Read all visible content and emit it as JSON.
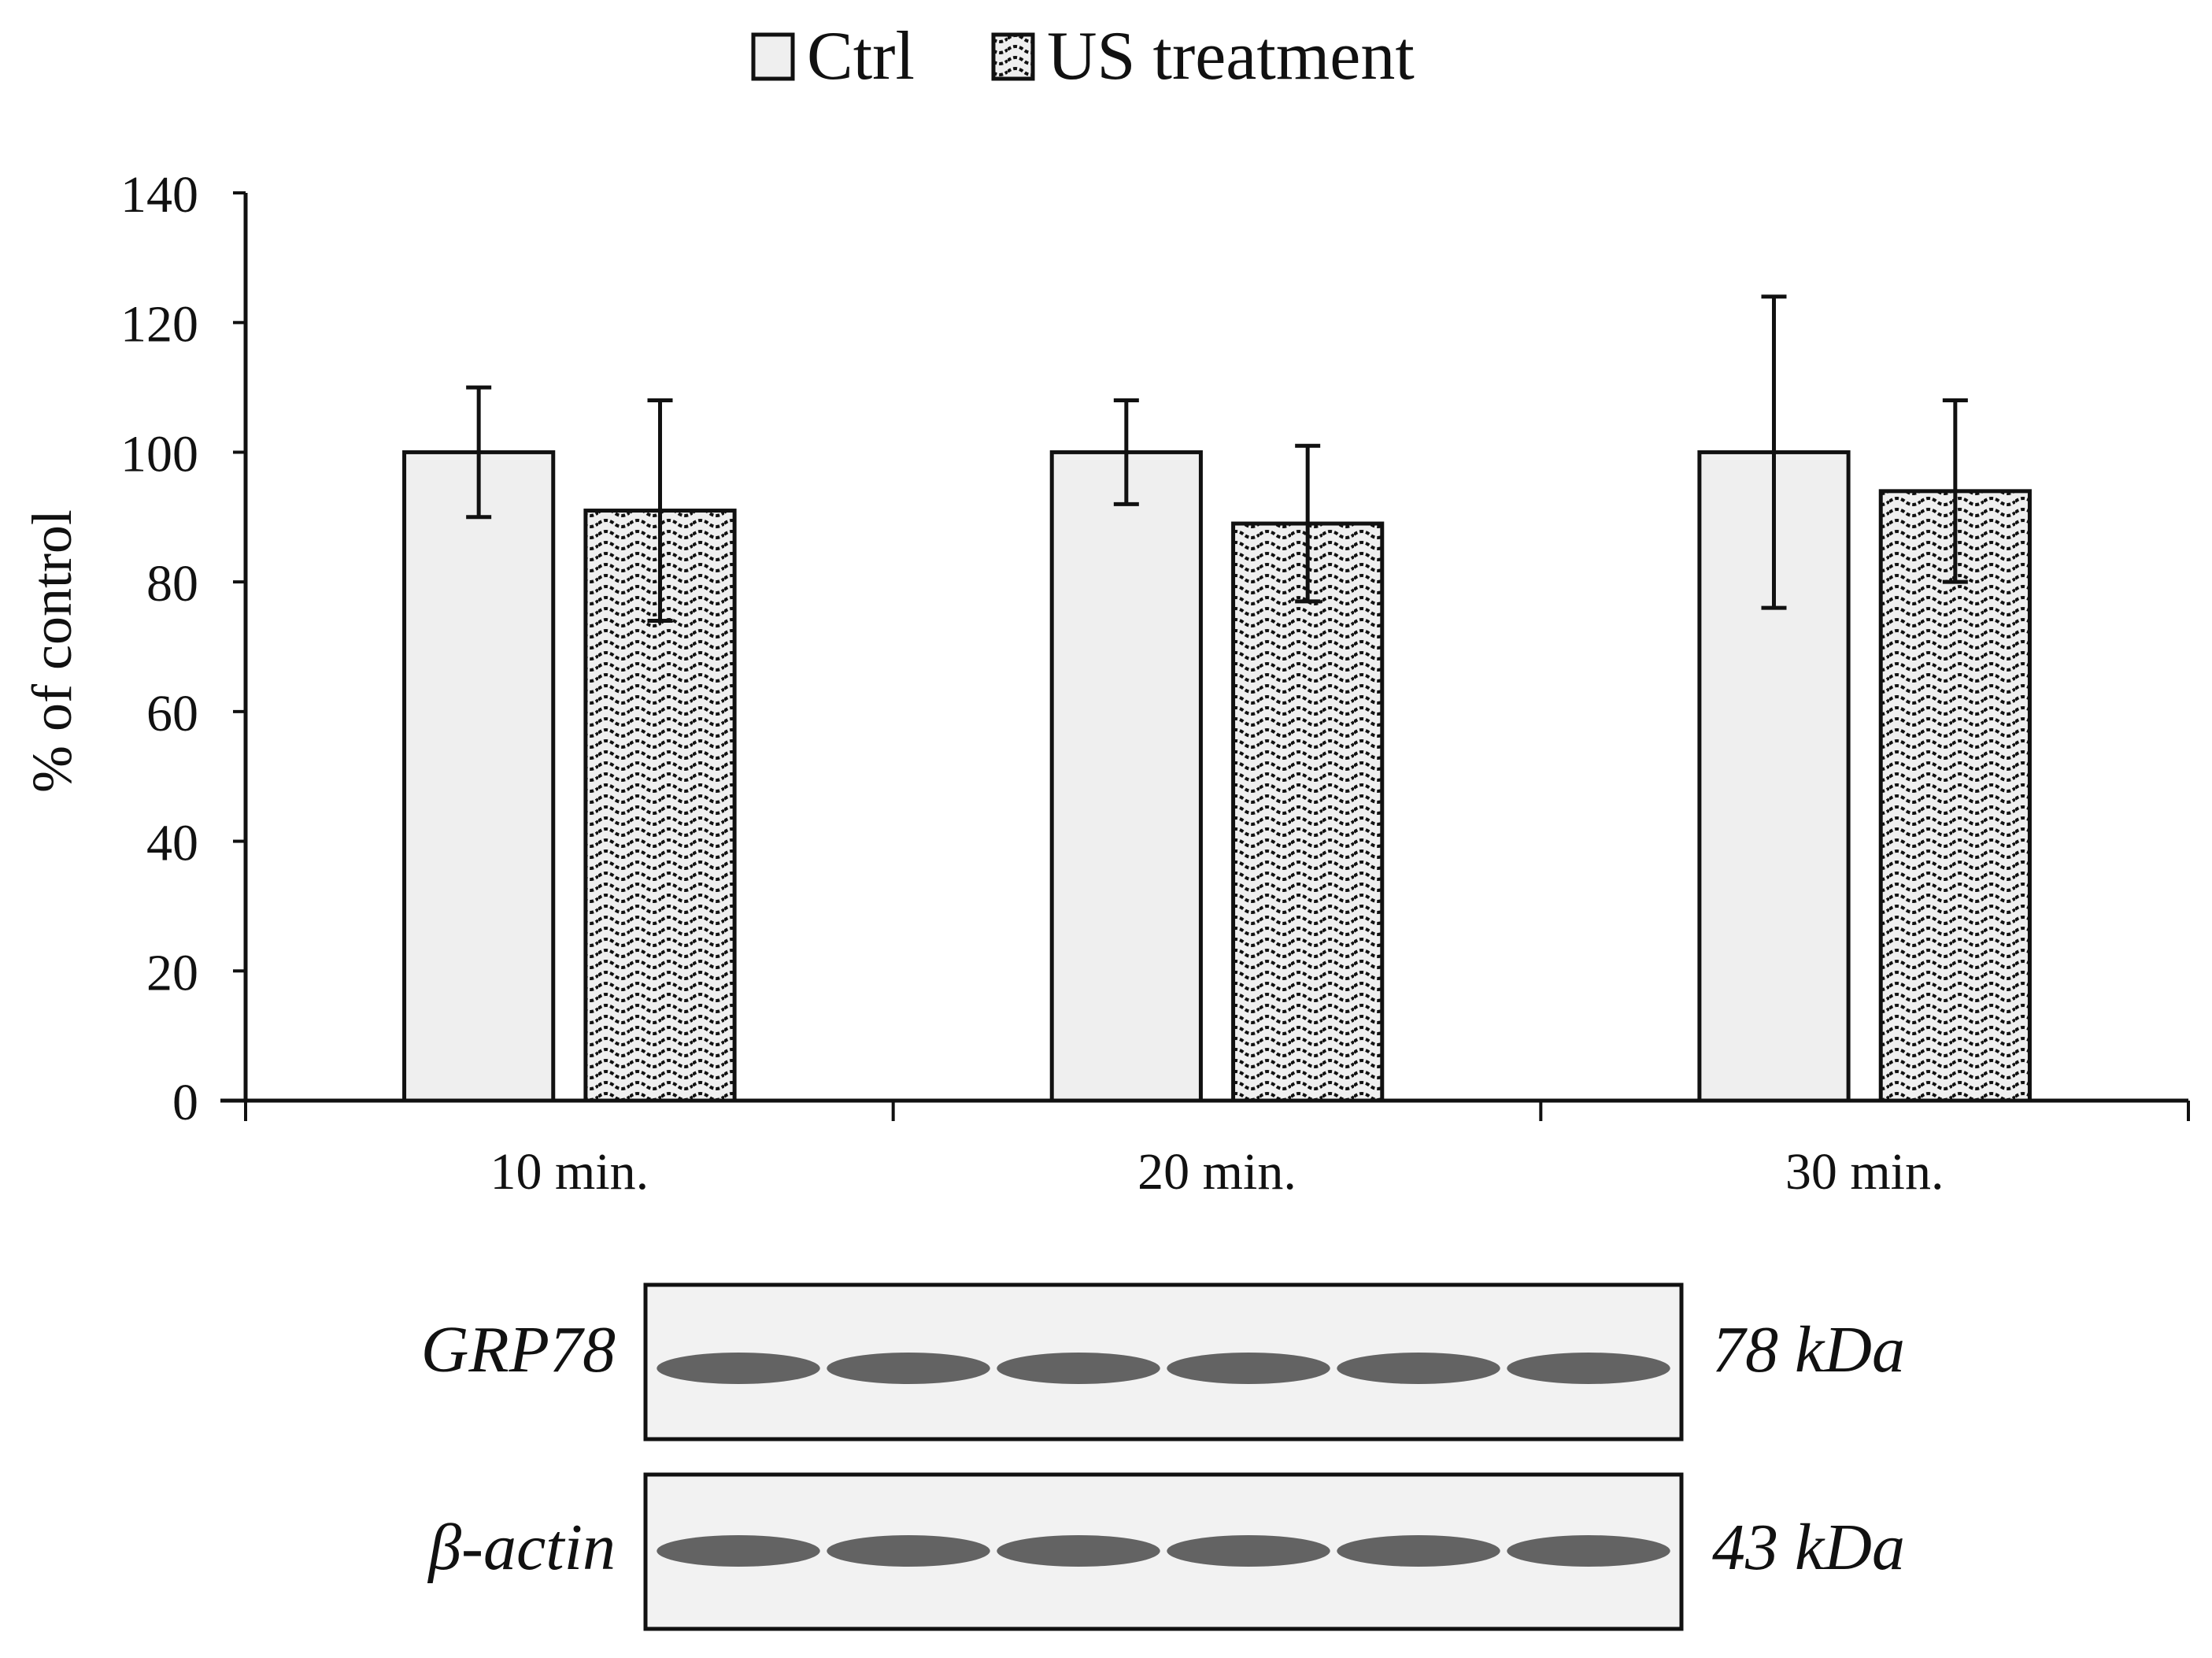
{
  "chart_data": {
    "type": "bar",
    "categories": [
      "10 min.",
      "20 min.",
      "30 min."
    ],
    "series": [
      {
        "name": "Ctrl",
        "values": [
          100,
          100,
          100
        ],
        "errors": [
          10,
          8,
          24
        ],
        "fill": "#efefef",
        "pattern": "none"
      },
      {
        "name": "US treatment",
        "values": [
          91,
          89,
          94
        ],
        "errors": [
          17,
          12,
          14
        ],
        "fill": "#efefef",
        "pattern": "wave"
      }
    ],
    "title": "",
    "xlabel": "",
    "ylabel": "% of control",
    "ylim": [
      0,
      140
    ],
    "yticks": [
      0,
      20,
      40,
      60,
      80,
      100,
      120,
      140
    ],
    "grid": false,
    "legend_position": "top-center"
  },
  "blot": {
    "rows": [
      {
        "label": "GRP78",
        "size": "78 kDa",
        "lanes": 6
      },
      {
        "label": "β-actin",
        "size": "43 kDa",
        "lanes": 6
      }
    ]
  }
}
